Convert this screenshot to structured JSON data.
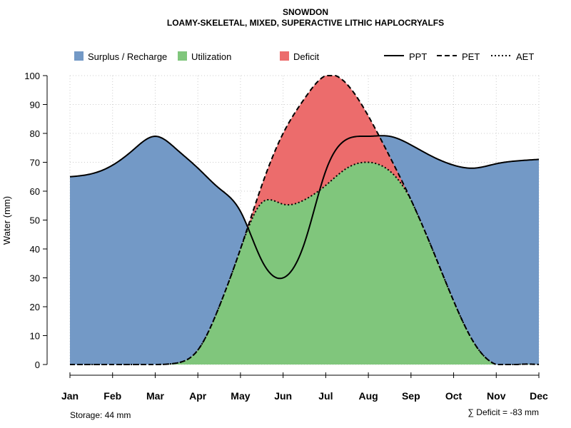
{
  "chart_data": {
    "type": "area",
    "title": "SNOWDON",
    "subtitle": "LOAMY-SKELETAL, MIXED, SUPERACTIVE LITHIC HAPLOCRYALFS",
    "xlabel": "",
    "ylabel": "Water (mm)",
    "ylim": [
      0,
      100
    ],
    "yticks": [
      0,
      10,
      20,
      30,
      40,
      50,
      60,
      70,
      80,
      90,
      100
    ],
    "grid": true,
    "categories": [
      "Jan",
      "Feb",
      "Mar",
      "Apr",
      "May",
      "Jun",
      "Jul",
      "Aug",
      "Sep",
      "Oct",
      "Nov",
      "Dec"
    ],
    "x": [
      1,
      1.5,
      2,
      2.5,
      3,
      3.5,
      4,
      4.5,
      5,
      5.5,
      6,
      6.5,
      7,
      7.5,
      8,
      8.5,
      9,
      9.5,
      10,
      10.5,
      11,
      11.5,
      12
    ],
    "series": [
      {
        "name": "PPT",
        "line_style": "solid",
        "values": [
          65,
          66,
          69,
          74.5,
          79,
          74.5,
          68,
          61,
          53,
          36,
          30,
          42,
          67,
          78,
          79,
          79,
          76,
          72,
          69,
          68,
          69.5,
          70.5,
          71
        ]
      },
      {
        "name": "PET",
        "line_style": "dashed",
        "values": [
          0,
          0,
          0,
          0,
          0,
          0.5,
          5,
          20,
          40,
          62,
          80,
          92,
          100,
          97,
          86,
          72,
          57,
          40,
          22,
          7,
          0,
          0,
          0
        ]
      },
      {
        "name": "AET",
        "line_style": "dotted",
        "values": [
          0,
          0,
          0,
          0,
          0,
          0.5,
          5,
          20,
          40,
          56,
          55.5,
          57,
          62,
          68,
          70,
          67,
          57,
          40,
          22,
          7,
          0,
          0,
          0
        ]
      }
    ],
    "fill_legend": [
      {
        "label": "Surplus / Recharge",
        "color": "#7399c6"
      },
      {
        "label": "Utilization",
        "color": "#80c67c"
      },
      {
        "label": "Deficit",
        "color": "#ec6c6c"
      }
    ],
    "line_legend": [
      {
        "label": "PPT",
        "style": "solid"
      },
      {
        "label": "PET",
        "style": "dashed"
      },
      {
        "label": "AET",
        "style": "dotted"
      }
    ],
    "legend_position": "top",
    "storage_note": "Storage: 44 mm",
    "deficit_note": "∑ Deficit = -83 mm"
  }
}
